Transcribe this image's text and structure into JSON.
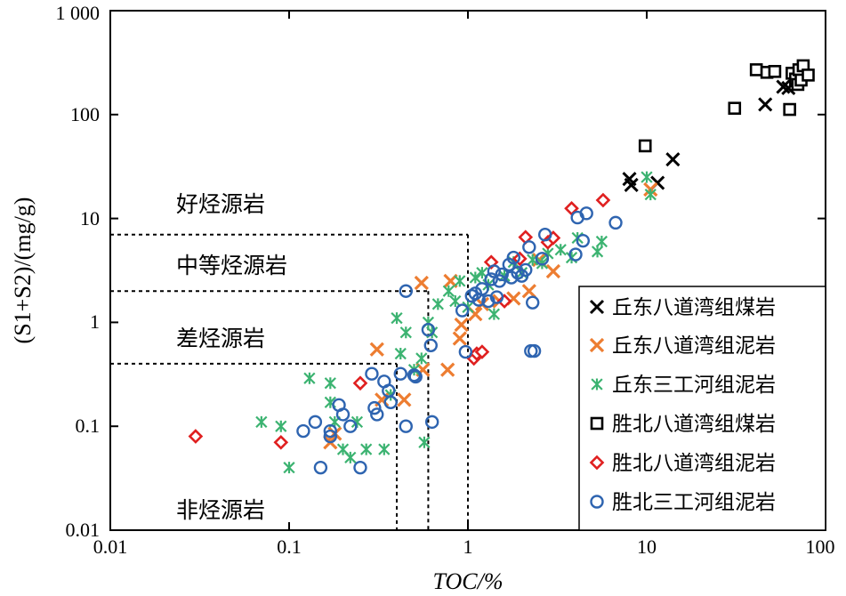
{
  "chart_data": {
    "type": "scatter",
    "xscale": "log",
    "yscale": "log",
    "xlim": [
      0.01,
      100
    ],
    "ylim": [
      0.01,
      1000
    ],
    "x_ticks": [
      "0.01",
      "0.1",
      "1",
      "10",
      "100"
    ],
    "y_ticks": [
      "0.01",
      "0.1",
      "1",
      "10",
      "100",
      "1 000"
    ],
    "xlabel": "TOC/%",
    "ylabel": "(S1+S2)/(mg/g)",
    "legend_position": "bottom-right",
    "zones": [
      {
        "label": "好烃源岩"
      },
      {
        "label": "中等烃源岩",
        "x_max": 1.0,
        "y_min": 7
      },
      {
        "label": "差烃源岩",
        "x_max": 0.6,
        "y_min": 2
      },
      {
        "label": "非烃源岩",
        "x_max": 0.4,
        "y_min": 0.4
      }
    ],
    "series": [
      {
        "name": "丘东八道湾组煤岩",
        "marker": "cross-x",
        "color": "#000000",
        "points": [
          [
            8,
            24
          ],
          [
            8.2,
            21
          ],
          [
            11.5,
            22
          ],
          [
            14,
            37
          ],
          [
            46,
            125
          ],
          [
            58,
            185
          ],
          [
            62,
            180
          ]
        ]
      },
      {
        "name": "丘东八道湾组泥岩",
        "marker": "cross-x",
        "color": "#ED7D31",
        "points": [
          [
            0.17,
            0.07
          ],
          [
            0.18,
            0.085
          ],
          [
            0.31,
            0.55
          ],
          [
            0.33,
            0.18
          ],
          [
            0.44,
            0.18
          ],
          [
            0.56,
            0.35
          ],
          [
            0.77,
            0.35
          ],
          [
            0.9,
            0.7
          ],
          [
            0.92,
            0.95
          ],
          [
            1.1,
            1.2
          ],
          [
            1.2,
            1.5
          ],
          [
            1.5,
            1.6
          ],
          [
            1.8,
            1.7
          ],
          [
            2.2,
            2.0
          ],
          [
            3.0,
            3.1
          ],
          [
            2.5,
            4.0
          ],
          [
            10.5,
            19
          ],
          [
            0.55,
            2.4
          ],
          [
            0.8,
            2.5
          ]
        ]
      },
      {
        "name": "丘东三工河组泥岩",
        "marker": "asterisk",
        "color": "#3CB371",
        "points": [
          [
            0.07,
            0.11
          ],
          [
            0.09,
            0.1
          ],
          [
            0.1,
            0.04
          ],
          [
            0.13,
            0.29
          ],
          [
            0.17,
            0.17
          ],
          [
            0.17,
            0.26
          ],
          [
            0.18,
            0.11
          ],
          [
            0.2,
            0.06
          ],
          [
            0.22,
            0.05
          ],
          [
            0.24,
            0.11
          ],
          [
            0.27,
            0.06
          ],
          [
            0.34,
            0.06
          ],
          [
            0.37,
            0.2
          ],
          [
            0.4,
            1.1
          ],
          [
            0.42,
            0.5
          ],
          [
            0.45,
            0.8
          ],
          [
            0.5,
            0.35
          ],
          [
            0.55,
            0.45
          ],
          [
            0.57,
            0.07
          ],
          [
            0.6,
            1.0
          ],
          [
            0.63,
            0.8
          ],
          [
            0.68,
            1.5
          ],
          [
            0.78,
            2.0
          ],
          [
            0.85,
            1.6
          ],
          [
            0.9,
            2.5
          ],
          [
            1.0,
            1.4
          ],
          [
            1.1,
            2.7
          ],
          [
            1.2,
            3.0
          ],
          [
            1.3,
            2.3
          ],
          [
            1.4,
            1.2
          ],
          [
            1.6,
            2.8
          ],
          [
            1.8,
            3.8
          ],
          [
            2.0,
            3.0
          ],
          [
            2.3,
            4.0
          ],
          [
            2.6,
            3.7
          ],
          [
            2.8,
            4.6
          ],
          [
            3.3,
            5.0
          ],
          [
            3.8,
            4.2
          ],
          [
            4.1,
            6.5
          ],
          [
            5.3,
            4.8
          ],
          [
            5.6,
            6.0
          ],
          [
            10,
            25
          ],
          [
            10.5,
            17
          ]
        ]
      },
      {
        "name": "胜北八道湾组煤岩",
        "marker": "square",
        "color": "#000000",
        "points": [
          [
            9.8,
            50
          ],
          [
            31,
            115
          ],
          [
            41,
            270
          ],
          [
            47,
            255
          ],
          [
            52,
            260
          ],
          [
            63,
            112
          ],
          [
            65,
            250
          ],
          [
            68,
            220
          ],
          [
            70,
            195
          ],
          [
            71,
            270
          ],
          [
            73,
            215
          ],
          [
            75,
            295
          ],
          [
            80,
            240
          ]
        ]
      },
      {
        "name": "胜北八道湾组泥岩",
        "marker": "diamond",
        "color": "#E02020",
        "points": [
          [
            0.03,
            0.08
          ],
          [
            0.09,
            0.07
          ],
          [
            0.25,
            0.26
          ],
          [
            1.08,
            0.45
          ],
          [
            1.12,
            0.5
          ],
          [
            1.2,
            0.52
          ],
          [
            1.35,
            3.8
          ],
          [
            1.6,
            1.6
          ],
          [
            1.95,
            4.1
          ],
          [
            2.1,
            6.6
          ],
          [
            2.8,
            5.9
          ],
          [
            3.0,
            6.5
          ],
          [
            3.8,
            12.5
          ],
          [
            5.7,
            15
          ]
        ]
      },
      {
        "name": "胜北三工河组泥岩",
        "marker": "circle",
        "color": "#2E64B0",
        "points": [
          [
            0.12,
            0.09
          ],
          [
            0.14,
            0.11
          ],
          [
            0.15,
            0.04
          ],
          [
            0.17,
            0.09
          ],
          [
            0.17,
            0.08
          ],
          [
            0.19,
            0.16
          ],
          [
            0.2,
            0.13
          ],
          [
            0.22,
            0.1
          ],
          [
            0.25,
            0.04
          ],
          [
            0.29,
            0.32
          ],
          [
            0.3,
            0.15
          ],
          [
            0.31,
            0.13
          ],
          [
            0.34,
            0.27
          ],
          [
            0.36,
            0.22
          ],
          [
            0.37,
            0.17
          ],
          [
            0.42,
            0.32
          ],
          [
            0.45,
            0.1
          ],
          [
            0.45,
            2.0
          ],
          [
            0.5,
            0.31
          ],
          [
            0.51,
            0.3
          ],
          [
            0.6,
            0.85
          ],
          [
            0.62,
            0.6
          ],
          [
            0.63,
            0.11
          ],
          [
            0.93,
            1.3
          ],
          [
            0.97,
            0.52
          ],
          [
            1.05,
            1.8
          ],
          [
            1.1,
            1.9
          ],
          [
            1.15,
            1.65
          ],
          [
            1.2,
            2.1
          ],
          [
            1.3,
            1.6
          ],
          [
            1.35,
            2.6
          ],
          [
            1.4,
            3.1
          ],
          [
            1.45,
            1.75
          ],
          [
            1.5,
            2.5
          ],
          [
            1.55,
            2.9
          ],
          [
            1.7,
            3.6
          ],
          [
            1.75,
            2.7
          ],
          [
            1.8,
            4.2
          ],
          [
            1.9,
            3.0
          ],
          [
            2.0,
            2.8
          ],
          [
            2.1,
            3.2
          ],
          [
            2.2,
            5.3
          ],
          [
            2.25,
            0.53
          ],
          [
            2.3,
            1.55
          ],
          [
            2.35,
            0.53
          ],
          [
            2.6,
            4.1
          ],
          [
            2.7,
            7.0
          ],
          [
            4.0,
            4.5
          ],
          [
            4.1,
            10.2
          ],
          [
            4.4,
            6.1
          ],
          [
            4.6,
            11.2
          ],
          [
            6.7,
            9.1
          ]
        ]
      }
    ]
  }
}
